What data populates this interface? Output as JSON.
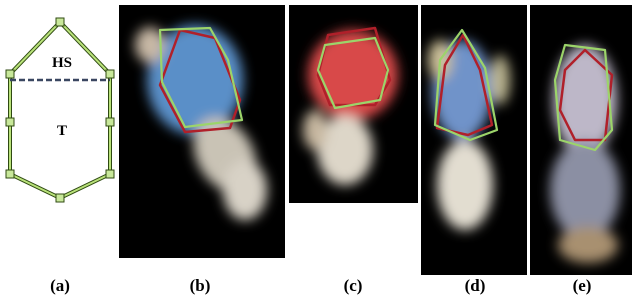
{
  "diagram": {
    "head_label": "HS",
    "torso_label": "T"
  },
  "panels": [
    {
      "label": "(a)"
    },
    {
      "label": "(b)"
    },
    {
      "label": "(c)"
    },
    {
      "label": "(d)"
    },
    {
      "label": "(e)"
    }
  ]
}
